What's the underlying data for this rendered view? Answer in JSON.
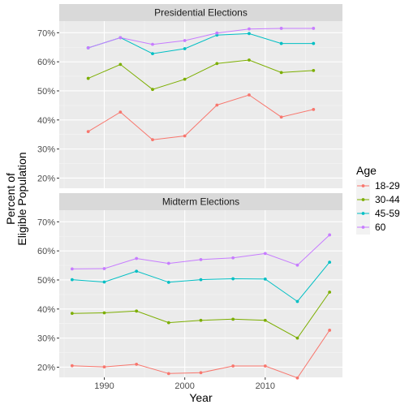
{
  "chart_data": {
    "type": "line",
    "xlabel": "Year",
    "ylabel_line1": "Percent of",
    "ylabel_line2": "Eligible Population",
    "xlim": [
      1984.4,
      2019.6
    ],
    "ylim": [
      0.165,
      0.74
    ],
    "xticks": [
      1990,
      2000,
      2010
    ],
    "xtick_labels": [
      "1990",
      "2000",
      "2010"
    ],
    "yticks": [
      0.2,
      0.3,
      0.4,
      0.5,
      0.6,
      0.7
    ],
    "ytick_labels": [
      "20%",
      "30%",
      "40%",
      "50%",
      "60%",
      "70%"
    ],
    "grid": true,
    "legend": {
      "title": "Age",
      "position": "right",
      "items": [
        {
          "label": "18-29",
          "color": "#F8766D"
        },
        {
          "label": "30-44",
          "color": "#7CAE00"
        },
        {
          "label": "45-59",
          "color": "#00BFC4"
        },
        {
          "label": "60",
          "color": "#C77CFF"
        }
      ]
    },
    "panels": [
      {
        "title": "Presidential Elections",
        "x": [
          1988,
          1992,
          1996,
          2000,
          2004,
          2008,
          2012,
          2016
        ],
        "series": [
          {
            "name": "18-29",
            "color": "#F8766D",
            "values": [
              0.36,
              0.427,
              0.332,
              0.345,
              0.451,
              0.486,
              0.41,
              0.436
            ]
          },
          {
            "name": "30-44",
            "color": "#7CAE00",
            "values": [
              0.543,
              0.591,
              0.505,
              0.54,
              0.594,
              0.606,
              0.563,
              0.57
            ]
          },
          {
            "name": "45-59",
            "color": "#00BFC4",
            "values": [
              0.648,
              0.683,
              0.628,
              0.645,
              0.692,
              0.697,
              0.663,
              0.663
            ]
          },
          {
            "name": "60",
            "color": "#C77CFF",
            "values": [
              0.648,
              0.683,
              0.66,
              0.673,
              0.699,
              0.713,
              0.715,
              0.715
            ]
          }
        ]
      },
      {
        "title": "Midterm Elections",
        "x": [
          1986,
          1990,
          1994,
          1998,
          2002,
          2006,
          2010,
          2014,
          2018
        ],
        "series": [
          {
            "name": "18-29",
            "color": "#F8766D",
            "values": [
              0.205,
              0.201,
              0.21,
              0.178,
              0.181,
              0.204,
              0.204,
              0.163,
              0.327
            ]
          },
          {
            "name": "30-44",
            "color": "#7CAE00",
            "values": [
              0.385,
              0.387,
              0.393,
              0.353,
              0.361,
              0.365,
              0.361,
              0.3,
              0.458
            ]
          },
          {
            "name": "45-59",
            "color": "#00BFC4",
            "values": [
              0.501,
              0.493,
              0.53,
              0.492,
              0.501,
              0.504,
              0.503,
              0.426,
              0.561
            ]
          },
          {
            "name": "60",
            "color": "#C77CFF",
            "values": [
              0.538,
              0.539,
              0.574,
              0.557,
              0.57,
              0.576,
              0.591,
              0.551,
              0.655
            ]
          }
        ]
      }
    ]
  }
}
